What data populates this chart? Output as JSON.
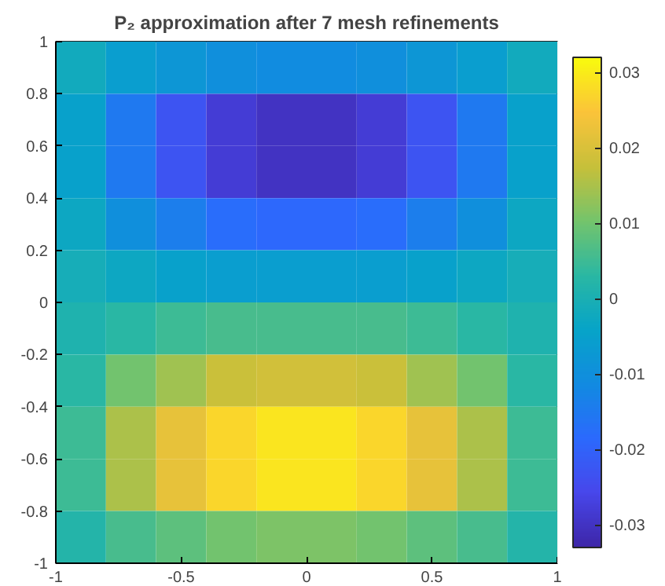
{
  "chart_data": {
    "type": "heatmap",
    "title": "P₂ approximation after 7 mesh refinements",
    "xlim": [
      -1,
      1
    ],
    "ylim": [
      -1,
      1
    ],
    "xticks": [
      -1,
      -0.5,
      0,
      0.5,
      1
    ],
    "yticks": [
      -1,
      -0.8,
      -0.6,
      -0.4,
      -0.2,
      0,
      0.2,
      0.4,
      0.6,
      0.8,
      1
    ],
    "clim": [
      -0.033,
      0.032
    ],
    "cticks": [
      -0.03,
      -0.02,
      -0.01,
      0,
      0.01,
      0.02,
      0.03
    ],
    "cells": [
      [
        -0.002,
        -0.006,
        -0.008,
        -0.01,
        -0.011,
        -0.011,
        -0.01,
        -0.008,
        -0.006,
        -0.002
      ],
      [
        -0.005,
        -0.015,
        -0.023,
        -0.028,
        -0.03,
        -0.03,
        -0.028,
        -0.023,
        -0.015,
        -0.005
      ],
      [
        -0.005,
        -0.015,
        -0.023,
        -0.028,
        -0.03,
        -0.03,
        -0.028,
        -0.023,
        -0.015,
        -0.005
      ],
      [
        -0.003,
        -0.01,
        -0.014,
        -0.018,
        -0.019,
        -0.019,
        -0.018,
        -0.014,
        -0.01,
        -0.003
      ],
      [
        -0.001,
        -0.003,
        -0.005,
        -0.006,
        -0.006,
        -0.006,
        -0.006,
        -0.005,
        -0.003,
        -0.001
      ],
      [
        0.001,
        0.003,
        0.005,
        0.006,
        0.006,
        0.006,
        0.006,
        0.005,
        0.003,
        0.001
      ],
      [
        0.003,
        0.01,
        0.014,
        0.018,
        0.019,
        0.019,
        0.018,
        0.014,
        0.01,
        0.003
      ],
      [
        0.005,
        0.015,
        0.022,
        0.027,
        0.029,
        0.029,
        0.027,
        0.022,
        0.015,
        0.005
      ],
      [
        0.005,
        0.015,
        0.022,
        0.027,
        0.029,
        0.029,
        0.027,
        0.022,
        0.015,
        0.005
      ],
      [
        0.002,
        0.006,
        0.008,
        0.01,
        0.011,
        0.011,
        0.01,
        0.008,
        0.006,
        0.002
      ]
    ]
  }
}
